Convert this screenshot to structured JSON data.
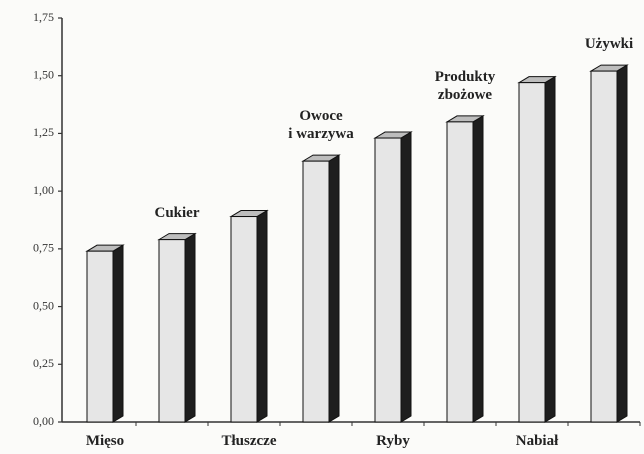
{
  "chart_data": {
    "type": "bar3d",
    "categories": [
      "Mięso",
      "Cukier",
      "Tłuszcze",
      "Owoce\ni warzywa",
      "Ryby",
      "Produkty\nzbożowe",
      "Nabiał",
      "Używki"
    ],
    "values": [
      0.74,
      0.79,
      0.89,
      1.13,
      1.23,
      1.3,
      1.47,
      1.52
    ],
    "color": "#e6e6e6",
    "side_color": "#1e1e1e",
    "ylim": [
      0,
      1.75
    ],
    "yticks": [
      {
        "value": 0,
        "label": "0,00"
      },
      {
        "value": 0.25,
        "label": "0,25"
      },
      {
        "value": 0.5,
        "label": "0,50"
      },
      {
        "value": 0.75,
        "label": "0,75"
      },
      {
        "value": 1,
        "label": "1,00"
      },
      {
        "value": 1.25,
        "label": "1,25"
      },
      {
        "value": 1.5,
        "label": "1,50"
      },
      {
        "value": 1.75,
        "label": "1,75"
      }
    ]
  }
}
